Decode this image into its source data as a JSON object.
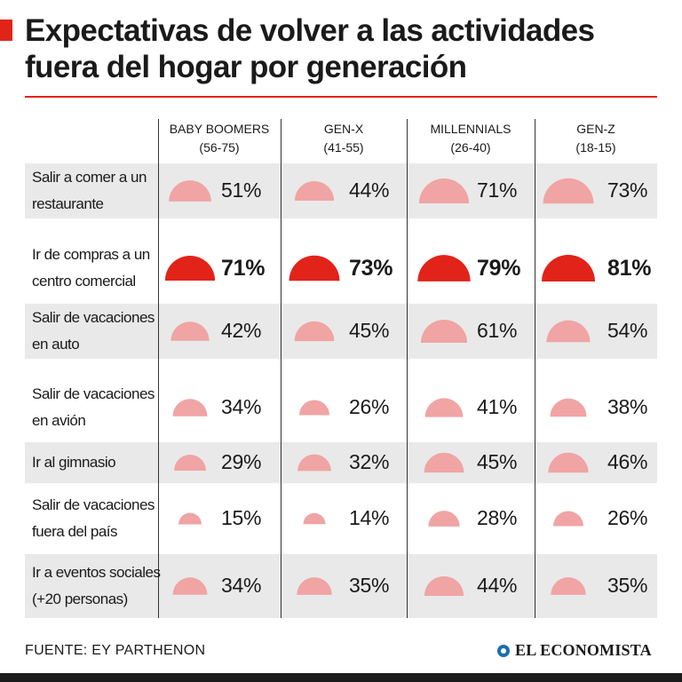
{
  "title": "Expectativas de volver a las actividades fuera del hogar por generación",
  "source": "FUENTE: EY PARTHENON",
  "brand": "EL ECONOMISTA",
  "chart_data": {
    "type": "table",
    "title": "Expectativas de volver a las actividades fuera del hogar por generación",
    "unit": "%",
    "columns": [
      {
        "name": "BABY BOOMERS",
        "range": "(56-75)"
      },
      {
        "name": "GEN-X",
        "range": "(41-55)"
      },
      {
        "name": "MILLENNIALS",
        "range": "(26-40)"
      },
      {
        "name": "GEN-Z",
        "range": "(18-15)"
      }
    ],
    "rows": [
      {
        "label": "Salir a comer a un restaurante",
        "values": [
          51,
          44,
          71,
          73
        ],
        "labels": [
          "51%",
          "44%",
          "71%",
          "73%"
        ],
        "highlight": false
      },
      {
        "label": "Ir de compras a un centro comercial",
        "values": [
          71,
          73,
          79,
          81
        ],
        "labels": [
          "71%",
          "73%",
          "79%",
          "81%"
        ],
        "highlight": true
      },
      {
        "label": "Salir de vacaciones en auto",
        "values": [
          42,
          45,
          61,
          54
        ],
        "labels": [
          "42%",
          "45%",
          "61%",
          "54%"
        ],
        "highlight": false
      },
      {
        "label": "Salir de vacaciones en avión",
        "values": [
          34,
          26,
          41,
          38
        ],
        "labels": [
          "34%",
          "26%",
          "41%",
          "38%"
        ],
        "highlight": false
      },
      {
        "label": "Ir al gimnasio",
        "values": [
          29,
          32,
          45,
          46
        ],
        "labels": [
          "29%",
          "32%",
          "45%",
          "46%"
        ],
        "highlight": false
      },
      {
        "label": "Salir de vacaciones fuera del país",
        "values": [
          15,
          14,
          28,
          26
        ],
        "labels": [
          "15%",
          "14%",
          "28%",
          "26%"
        ],
        "highlight": false
      },
      {
        "label": "Ir a eventos sociales (+20 personas)",
        "values": [
          34,
          35,
          44,
          35
        ],
        "labels": [
          "34%",
          "35%",
          "44%",
          "35%"
        ],
        "highlight": false
      }
    ]
  },
  "colors": {
    "accent": "#e2231a",
    "highlight_mark": "#e2231a",
    "regular_mark": "#f0a4a4",
    "band": "#e9e9e9"
  }
}
